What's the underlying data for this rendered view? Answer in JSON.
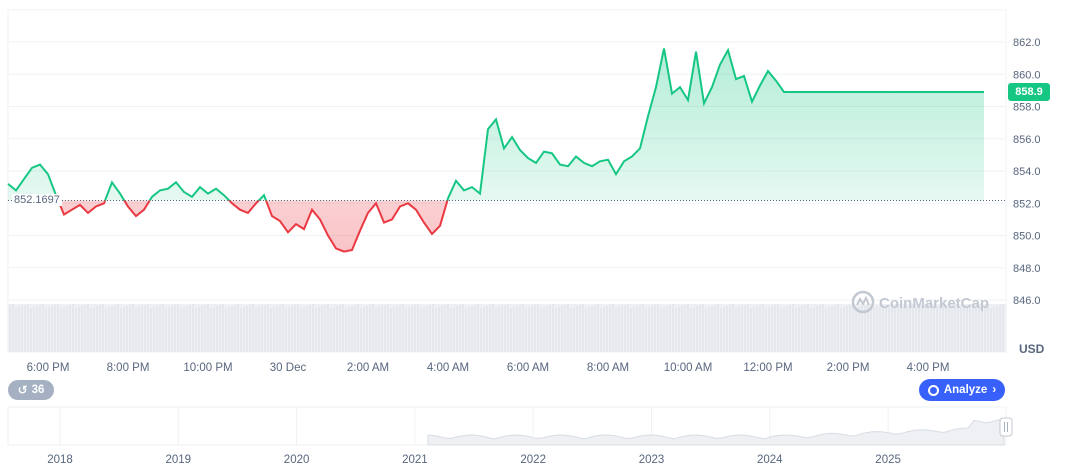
{
  "chart_data": {
    "type": "line",
    "y_unit": "USD",
    "ylim": [
      845,
      864
    ],
    "y_ticks": [
      "846.0",
      "848.0",
      "850.0",
      "852.0",
      "854.0",
      "856.0",
      "858.0",
      "860.0",
      "862.0"
    ],
    "x_tick_labels": [
      "6:00 PM",
      "8:00 PM",
      "10:00 PM",
      "30 Dec",
      "2:00 AM",
      "4:00 AM",
      "6:00 AM",
      "8:00 AM",
      "10:00 AM",
      "12:00 PM",
      "2:00 PM",
      "4:00 PM"
    ],
    "x_hours_at_ticks": [
      0,
      2,
      4,
      6,
      8,
      10,
      12,
      14,
      16,
      18,
      20,
      22
    ],
    "reference_price": "852.1697",
    "last_price": "858.9",
    "positive_color": "#16c784",
    "negative_color": "#ea3943",
    "series": [
      {
        "x": [
          -1.0,
          -0.8,
          -0.6,
          -0.4,
          -0.2,
          0.0,
          0.2,
          0.4,
          0.6,
          0.8,
          1.0,
          1.2,
          1.4,
          1.6,
          1.8,
          2.0,
          2.2,
          2.4,
          2.6,
          2.8,
          3.0,
          3.2,
          3.4,
          3.6,
          3.8,
          4.0,
          4.2,
          4.4,
          4.6,
          4.8,
          5.0,
          5.2,
          5.4,
          5.6,
          5.8,
          6.0,
          6.2,
          6.4,
          6.6,
          6.8,
          7.0,
          7.2,
          7.4,
          7.6,
          7.8,
          8.0,
          8.2,
          8.4,
          8.6,
          8.8,
          9.0,
          9.2,
          9.4,
          9.6,
          9.8,
          10.0,
          10.2,
          10.4,
          10.6,
          10.8,
          11.0,
          11.2,
          11.4,
          11.6,
          11.8,
          12.0,
          12.2,
          12.4,
          12.6,
          12.8,
          13.0,
          13.2,
          13.4,
          13.6,
          13.8,
          14.0,
          14.2,
          14.4,
          14.6,
          14.8,
          15.0,
          15.2,
          15.4,
          15.6,
          15.8,
          16.0,
          16.2,
          16.4,
          16.6,
          16.8,
          17.0,
          17.2,
          17.4,
          17.6,
          17.8,
          18.0,
          18.2,
          18.4,
          18.6,
          18.8,
          19.0,
          19.2,
          19.4,
          19.6,
          19.8,
          20.0,
          20.2,
          20.4,
          20.6,
          20.8,
          21.0,
          21.2,
          21.4,
          21.6,
          21.8,
          22.0,
          22.2,
          22.4,
          22.6,
          22.8,
          23.0,
          23.2,
          23.4
        ],
        "y": [
          853.2,
          852.8,
          853.5,
          854.2,
          854.4,
          853.8,
          852.5,
          851.3,
          851.6,
          851.9,
          851.4,
          851.8,
          852.0,
          853.3,
          852.6,
          851.8,
          851.2,
          851.6,
          852.4,
          852.8,
          852.9,
          853.3,
          852.7,
          852.4,
          853.0,
          852.6,
          852.9,
          852.5,
          852.0,
          851.6,
          851.4,
          852.0,
          852.5,
          851.2,
          850.9,
          850.2,
          850.7,
          850.4,
          851.6,
          851.0,
          850.0,
          849.2,
          849.0,
          849.1,
          850.3,
          851.4,
          852.0,
          850.8,
          851.0,
          851.8,
          852.0,
          851.6,
          850.8,
          850.1,
          850.6,
          852.3,
          853.4,
          852.8,
          853.0,
          852.6,
          856.6,
          857.2,
          855.4,
          856.1,
          855.3,
          854.8,
          854.5,
          855.2,
          855.1,
          854.4,
          854.3,
          854.9,
          854.5,
          854.3,
          854.6,
          854.7,
          853.8,
          854.6,
          854.9,
          855.4,
          857.4,
          859.2,
          861.6,
          858.8,
          859.2,
          858.4,
          861.4,
          858.2,
          859.2,
          860.6,
          861.5,
          859.7,
          859.9,
          858.3,
          859.3,
          860.2,
          859.6,
          858.9,
          858.9,
          858.9,
          858.9,
          858.9,
          858.9,
          858.9,
          858.9,
          858.9,
          858.9,
          858.9,
          858.9,
          858.9,
          858.9,
          858.9,
          858.9,
          858.9,
          858.9,
          858.9,
          858.9,
          858.9,
          858.9,
          858.9,
          858.9,
          858.9,
          858.9
        ]
      }
    ]
  },
  "navigator": {
    "year_labels": [
      "2018",
      "2019",
      "2020",
      "2021",
      "2022",
      "2023",
      "2024",
      "2025"
    ]
  },
  "ui": {
    "history_count": "36",
    "analyze_label": "Analyze",
    "watermark": "CoinMarketCap",
    "usd_label": "USD"
  }
}
